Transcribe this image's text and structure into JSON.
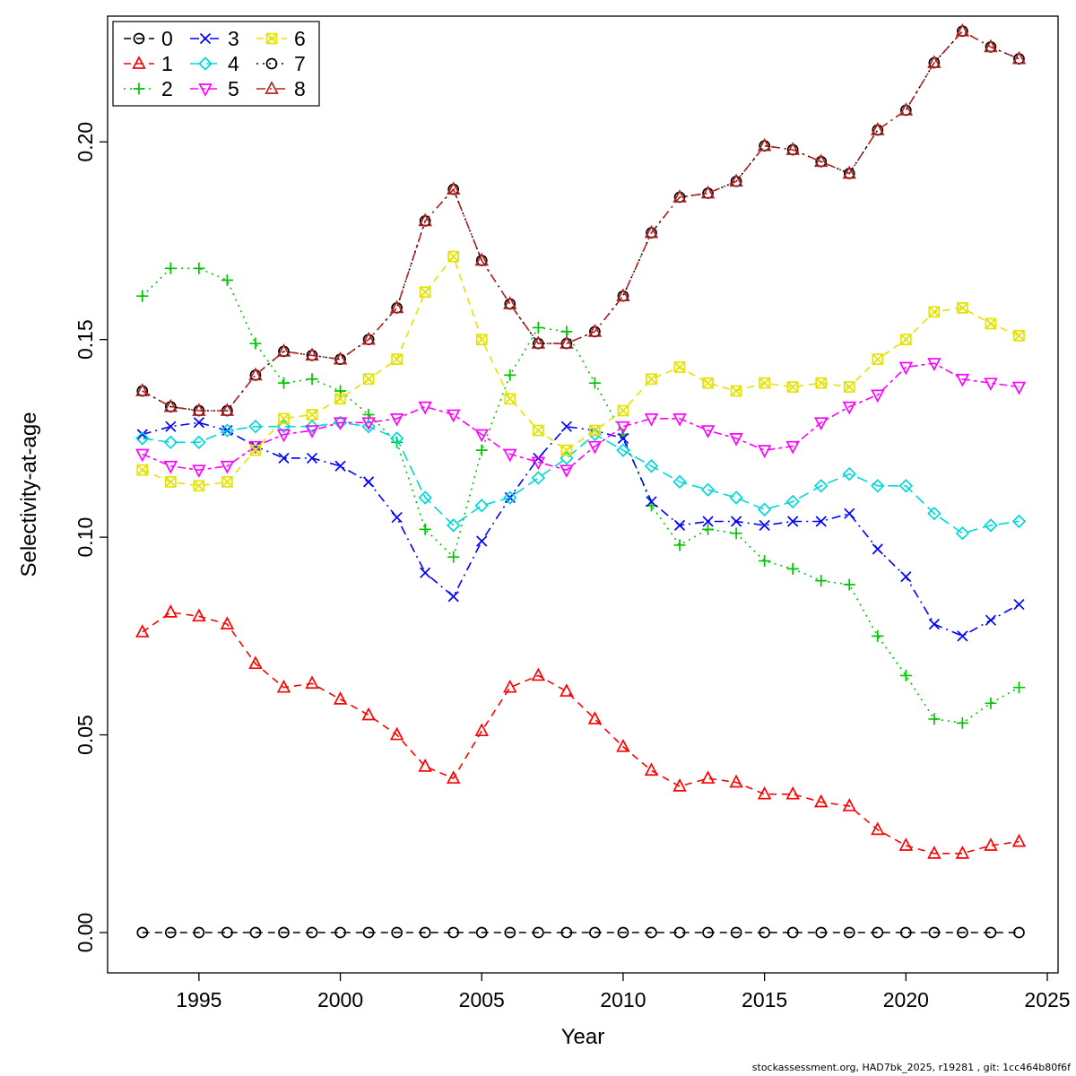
{
  "footer": {
    "text": "stockassessment.org, HAD7bk_2025, r19281 , git: 1cc464b80f6f"
  },
  "chart_data": {
    "type": "line",
    "title": "",
    "xlabel": "Year",
    "ylabel": "Selectivity-at-age",
    "grid": false,
    "legend_position": "top-left",
    "xlim": [
      1991.77,
      2025.38
    ],
    "ylim": [
      -0.0102,
      0.2318
    ],
    "xticks": [
      1995,
      2000,
      2005,
      2010,
      2015,
      2020,
      2025
    ],
    "yticks": [
      0.0,
      0.05,
      0.1,
      0.15,
      0.2
    ],
    "x": [
      1993,
      1994,
      1995,
      1996,
      1997,
      1998,
      1999,
      2000,
      2001,
      2002,
      2003,
      2004,
      2005,
      2006,
      2007,
      2008,
      2009,
      2010,
      2011,
      2012,
      2013,
      2014,
      2015,
      2016,
      2017,
      2018,
      2019,
      2020,
      2021,
      2022,
      2023,
      2024
    ],
    "series": [
      {
        "name": "0",
        "color": "#000000",
        "marker": "circle",
        "dash": "dashed",
        "values": [
          0,
          0,
          0,
          0,
          0,
          0,
          0,
          0,
          0,
          0,
          0,
          0,
          0,
          0,
          0,
          0,
          0,
          0,
          0,
          0,
          0,
          0,
          0,
          0,
          0,
          0,
          0,
          0,
          0,
          0,
          0,
          0
        ]
      },
      {
        "name": "1",
        "color": "#FF0000",
        "marker": "triangle-up",
        "dash": "dashed",
        "values": [
          0.076,
          0.081,
          0.08,
          0.078,
          0.068,
          0.062,
          0.063,
          0.059,
          0.055,
          0.05,
          0.042,
          0.039,
          0.051,
          0.062,
          0.065,
          0.061,
          0.054,
          0.047,
          0.041,
          0.037,
          0.039,
          0.038,
          0.035,
          0.035,
          0.033,
          0.032,
          0.026,
          0.022,
          0.02,
          0.02,
          0.022,
          0.023
        ]
      },
      {
        "name": "2",
        "color": "#00C400",
        "marker": "plus",
        "dash": "dotted",
        "values": [
          0.161,
          0.168,
          0.168,
          0.165,
          0.149,
          0.139,
          0.14,
          0.137,
          0.131,
          0.124,
          0.102,
          0.095,
          0.122,
          0.141,
          0.153,
          0.152,
          0.139,
          0.126,
          0.108,
          0.098,
          0.102,
          0.101,
          0.094,
          0.092,
          0.089,
          0.088,
          0.075,
          0.065,
          0.054,
          0.053,
          0.058,
          0.062
        ]
      },
      {
        "name": "3",
        "color": "#0000FF",
        "marker": "x",
        "dash": "dashdot",
        "values": [
          0.126,
          0.128,
          0.129,
          0.127,
          0.123,
          0.12,
          0.12,
          0.118,
          0.114,
          0.105,
          0.091,
          0.085,
          0.099,
          0.11,
          0.12,
          0.128,
          0.127,
          0.125,
          0.109,
          0.103,
          0.104,
          0.104,
          0.103,
          0.104,
          0.104,
          0.106,
          0.097,
          0.09,
          0.078,
          0.075,
          0.079,
          0.083
        ]
      },
      {
        "name": "4",
        "color": "#00D8D8",
        "marker": "diamond",
        "dash": "longdash",
        "values": [
          0.125,
          0.124,
          0.124,
          0.127,
          0.128,
          0.128,
          0.128,
          0.129,
          0.128,
          0.125,
          0.11,
          0.103,
          0.108,
          0.11,
          0.115,
          0.12,
          0.126,
          0.122,
          0.118,
          0.114,
          0.112,
          0.11,
          0.107,
          0.109,
          0.113,
          0.116,
          0.113,
          0.113,
          0.106,
          0.101,
          0.103,
          0.104
        ]
      },
      {
        "name": "5",
        "color": "#FF00FF",
        "marker": "triangle-down",
        "dash": "twodash",
        "values": [
          0.121,
          0.118,
          0.117,
          0.118,
          0.123,
          0.126,
          0.127,
          0.129,
          0.129,
          0.13,
          0.133,
          0.131,
          0.126,
          0.121,
          0.119,
          0.117,
          0.123,
          0.128,
          0.13,
          0.13,
          0.127,
          0.125,
          0.122,
          0.123,
          0.129,
          0.133,
          0.136,
          0.143,
          0.144,
          0.14,
          0.139,
          0.138
        ]
      },
      {
        "name": "6",
        "color": "#E3E300",
        "marker": "square-x",
        "dash": "dashed",
        "values": [
          0.117,
          0.114,
          0.113,
          0.114,
          0.122,
          0.13,
          0.131,
          0.135,
          0.14,
          0.145,
          0.162,
          0.171,
          0.15,
          0.135,
          0.127,
          0.122,
          0.127,
          0.132,
          0.14,
          0.143,
          0.139,
          0.137,
          0.139,
          0.138,
          0.139,
          0.138,
          0.145,
          0.15,
          0.157,
          0.158,
          0.154,
          0.151
        ]
      },
      {
        "name": "7",
        "color": "#000000",
        "marker": "circle",
        "dash": "dotted",
        "values": [
          0.137,
          0.133,
          0.132,
          0.132,
          0.141,
          0.147,
          0.146,
          0.145,
          0.15,
          0.158,
          0.18,
          0.188,
          0.17,
          0.159,
          0.149,
          0.149,
          0.152,
          0.161,
          0.177,
          0.186,
          0.187,
          0.19,
          0.199,
          0.198,
          0.195,
          0.192,
          0.203,
          0.208,
          0.22,
          0.228,
          0.224,
          0.221
        ]
      },
      {
        "name": "8",
        "color": "#B22222",
        "marker": "triangle-up",
        "dash": "dashdot",
        "values": [
          0.137,
          0.133,
          0.132,
          0.132,
          0.141,
          0.147,
          0.146,
          0.145,
          0.15,
          0.158,
          0.18,
          0.188,
          0.17,
          0.159,
          0.149,
          0.149,
          0.152,
          0.161,
          0.177,
          0.186,
          0.187,
          0.19,
          0.199,
          0.198,
          0.195,
          0.192,
          0.203,
          0.208,
          0.22,
          0.228,
          0.224,
          0.221
        ]
      }
    ]
  }
}
